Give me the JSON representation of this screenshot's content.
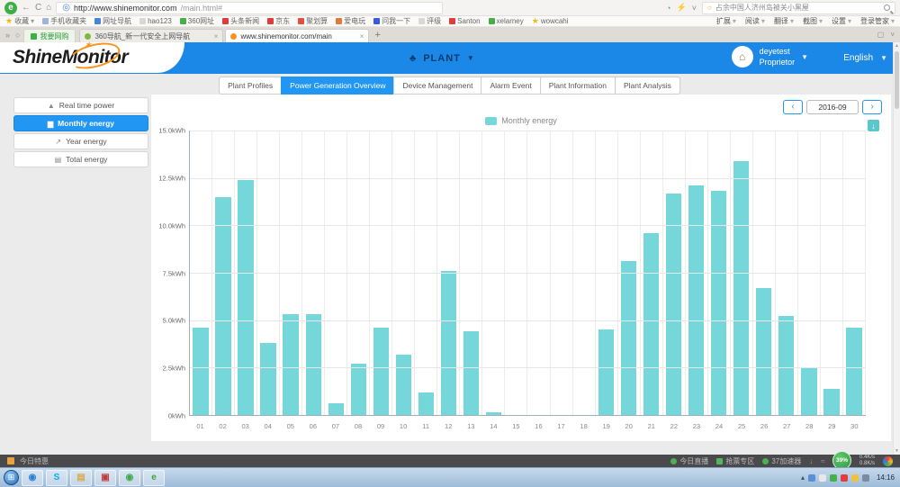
{
  "browser": {
    "url_host": "http://www.shinemonitor.com",
    "url_path": "/main.html#",
    "search_text": "占余中国人济州岛被关小黑屋",
    "pinned_tab": "我要网购",
    "bookmarks": [
      {
        "label": "收藏",
        "icon": "star-icon",
        "color": "#f5b60a"
      },
      {
        "label": "手机收藏夹",
        "icon": "phone-icon",
        "color": "#9db6d8"
      },
      {
        "label": "网址导航",
        "icon": "compass-icon",
        "color": "#4a86d8"
      },
      {
        "label": "hao123",
        "icon": "page-icon",
        "color": "#d8d8d8"
      },
      {
        "label": "360网址",
        "icon": "globe-icon",
        "color": "#45b045"
      },
      {
        "label": "头条新闻",
        "icon": "news-icon",
        "color": "#e03c3c"
      },
      {
        "label": "京东",
        "icon": "jd-icon",
        "color": "#e03c3c"
      },
      {
        "label": "聚划算",
        "icon": "deal-icon",
        "color": "#e0503c"
      },
      {
        "label": "爱电玩",
        "icon": "game-icon",
        "color": "#e07a3c"
      },
      {
        "label": "问我一下",
        "icon": "ask-icon",
        "color": "#3c5ae0"
      },
      {
        "label": "评级",
        "icon": "page-icon",
        "color": "#d8d8d8"
      },
      {
        "label": "Santon",
        "icon": "s-icon",
        "color": "#e03c3c"
      },
      {
        "label": "xelarney",
        "icon": "grid-icon",
        "color": "#45b045"
      },
      {
        "label": "wowcahi",
        "icon": "star-icon",
        "color": "#f5b60a"
      }
    ],
    "menus": [
      "扩展",
      "阅读",
      "翻译",
      "截图",
      "设置",
      "登录管家"
    ],
    "tabs": [
      {
        "label": "360导航_新一代安全上网导航",
        "favicon_color": "#7cb83d",
        "active": false,
        "close": "×"
      },
      {
        "label": "www.shinemonitor.com/main",
        "favicon_color": "#f7941d",
        "active": true,
        "close": "×"
      }
    ]
  },
  "header": {
    "logo_shine": "Shine",
    "logo_monitor": "Monitor",
    "nav_plant": "PLANT",
    "user_name": "deyetest",
    "user_role": "Proprietor",
    "language": "English"
  },
  "tab_nav": {
    "active_index": 1,
    "tabs": [
      "Plant Profiles",
      "Power Generation Overview",
      "Device Management",
      "Alarm Event",
      "Plant Information",
      "Plant Analysis"
    ]
  },
  "sidebar": {
    "items": [
      {
        "label": "Real time power",
        "icon": "area-chart-icon",
        "active": false
      },
      {
        "label": "Monthly energy",
        "icon": "bar-chart-icon",
        "active": true
      },
      {
        "label": "Year energy",
        "icon": "line-chart-icon",
        "active": false
      },
      {
        "label": "Total energy",
        "icon": "table-icon",
        "active": false
      }
    ]
  },
  "toolbar": {
    "date": "2016-09",
    "prev": "‹",
    "next": "›"
  },
  "chart_data": {
    "type": "bar",
    "title": "Monthly energy",
    "legend": [
      "Monthly energy"
    ],
    "legend_position": "top-center",
    "categories": [
      "01",
      "02",
      "03",
      "04",
      "05",
      "06",
      "07",
      "08",
      "09",
      "10",
      "11",
      "12",
      "13",
      "14",
      "15",
      "16",
      "17",
      "18",
      "19",
      "20",
      "21",
      "22",
      "23",
      "24",
      "25",
      "26",
      "27",
      "28",
      "29",
      "30"
    ],
    "values": [
      4.6,
      11.5,
      12.4,
      3.8,
      5.3,
      5.3,
      0.6,
      2.7,
      4.6,
      3.2,
      1.2,
      7.6,
      4.4,
      0.15,
      0,
      0,
      0,
      0,
      4.5,
      8.1,
      9.6,
      11.7,
      12.1,
      11.8,
      13.4,
      6.7,
      5.2,
      2.5,
      1.4,
      4.6
    ],
    "xlabel": "",
    "ylabel": "kWh",
    "y_ticks": [
      "0kWh",
      "2.5kWh",
      "5.0kWh",
      "7.5kWh",
      "10.0kWh",
      "12.5kWh",
      "15.0kWh"
    ],
    "ylim": [
      0,
      15
    ],
    "grid": true,
    "bar_color": "#76d7da"
  },
  "status_bar": {
    "left_label": "今日特惠",
    "items": [
      "今日直播",
      "抢票专区",
      "37加速器"
    ],
    "percent": "39%",
    "speed_up": "0.4K/s",
    "speed_down": "0.8K/s"
  },
  "taskbar": {
    "time": "14:16",
    "apps": [
      {
        "name": "app-360-icon",
        "glyph": "◉",
        "color": "#2e7fd4"
      },
      {
        "name": "skype-icon",
        "glyph": "S",
        "color": "#00aff0"
      },
      {
        "name": "notes-icon",
        "glyph": "▤",
        "color": "#d7a94b"
      },
      {
        "name": "reader-icon",
        "glyph": "▣",
        "color": "#c23b3b"
      },
      {
        "name": "qq-game-icon",
        "glyph": "◉",
        "color": "#3cab4a"
      },
      {
        "name": "browser-e-icon",
        "glyph": "e",
        "color": "#3aa63a"
      }
    ],
    "tray_colors": [
      "#5a8fd6",
      "#e8e8e8",
      "#46b04a",
      "#e23c3c",
      "#f0c040",
      "#7a8ba0"
    ]
  }
}
